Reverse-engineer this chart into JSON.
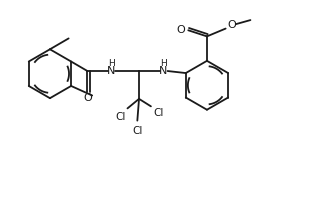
{
  "bg_color": "#ffffff",
  "line_color": "#1a1a1a",
  "line_width": 1.3,
  "font_size": 7.5,
  "figsize": [
    3.24,
    2.12
  ],
  "dpi": 100,
  "xlim": [
    0,
    9.5
  ],
  "ylim": [
    0,
    6.2
  ]
}
